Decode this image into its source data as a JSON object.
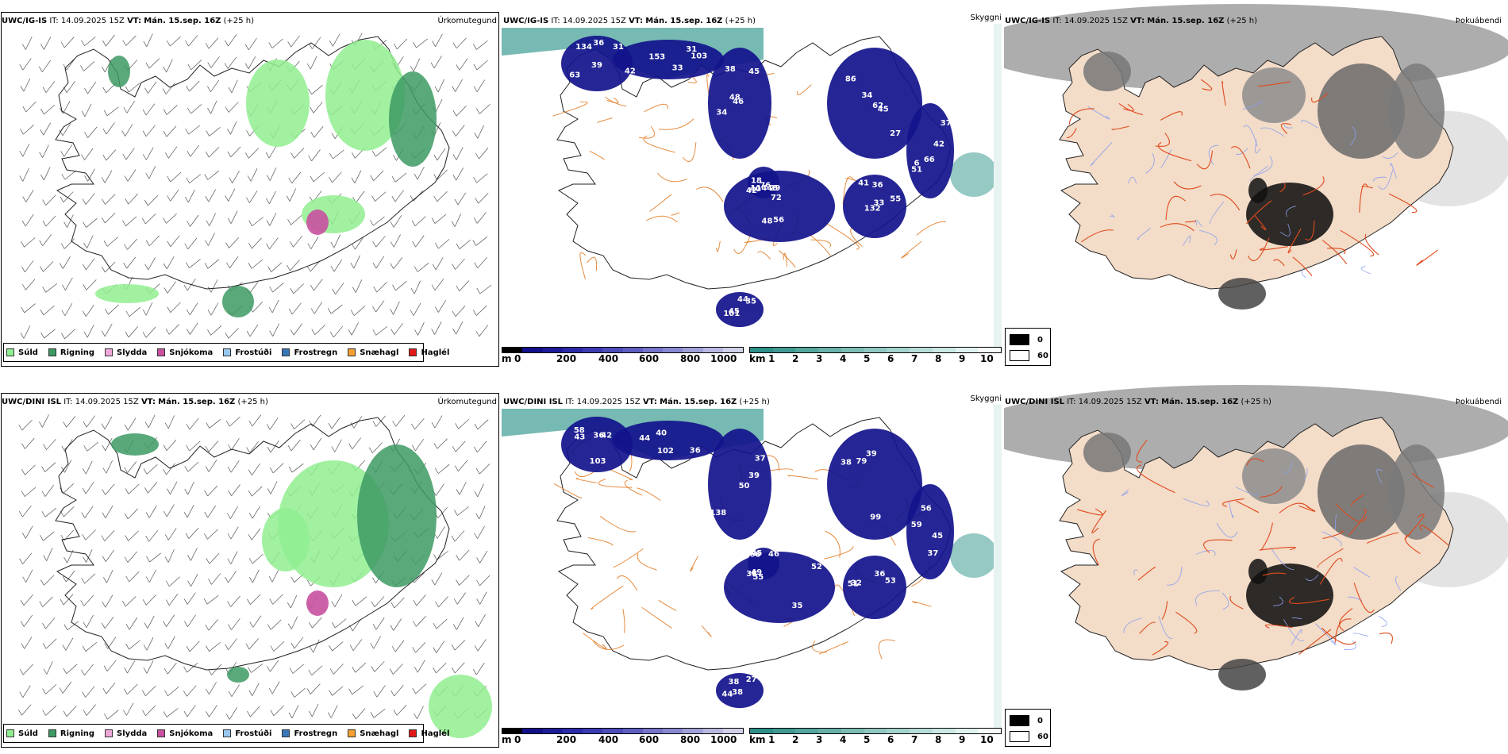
{
  "colors": {
    "precip_legend": [
      "#90ee90",
      "#3d9a63",
      "#f0a8d8",
      "#c8509e",
      "#98c8f0",
      "#3878b8",
      "#f5a030",
      "#e01818"
    ],
    "depth_bar": [
      "#000000",
      "#101088",
      "#1c1c98",
      "#2a2aa8",
      "#3a3ab0",
      "#4c4cb8",
      "#5e5ec0",
      "#7474c8",
      "#8888d0",
      "#a0a0d8",
      "#b8b8e0",
      "#d0d0e8"
    ],
    "height_bar": [
      "#2e8f88",
      "#419a92",
      "#54a59d",
      "#68b0a8",
      "#7cbcb4",
      "#90c7c0",
      "#a4d2cc",
      "#b8ddd8",
      "#cce8e4",
      "#e0f2f0",
      "#f4fbfa"
    ],
    "cloud_legend": [
      "#000000",
      "#ffffff"
    ]
  },
  "precip_legend": [
    "Súld",
    "Rigning",
    "Slydda",
    "Snjókoma",
    "Frostúði",
    "Frostregn",
    "Snæhagl",
    "Haglél"
  ],
  "depth_bar": {
    "unit": "m",
    "ticks": [
      "0",
      "200",
      "400",
      "600",
      "800",
      "1000"
    ]
  },
  "height_bar": {
    "unit": "km",
    "ticks": [
      "1",
      "2",
      "3",
      "4",
      "5",
      "6",
      "7",
      "8",
      "9",
      "10"
    ]
  },
  "cloud_legend": [
    "0",
    "60"
  ],
  "rows": [
    {
      "panel1": {
        "model": "UWC/IG-IS",
        "it": "IT: 14.09.2025 15Z",
        "vt_label": "VT:",
        "vt": "Mán. 15.sep. 16Z",
        "lead": "(+25 h)",
        "right": "Úrkomutegund"
      },
      "panel2": {
        "model": "UWC/IG-IS",
        "it": "IT: 14.09.2025 15Z",
        "vt_label": "VT:",
        "vt": "Mán. 15.sep. 16Z",
        "lead": "(+25 h)",
        "right": "Skyggni"
      },
      "panel3": {
        "model": "UWC/IG-IS",
        "it": "IT: 14.09.2025 15Z",
        "vt_label": "VT:",
        "vt": "Mán. 15.sep. 16Z",
        "lead": "(+25 h)",
        "right": "Þokuábendi"
      },
      "labels": [
        "134",
        "103",
        "48",
        "27",
        "6",
        "42",
        "33",
        "114",
        "45",
        "31",
        "31",
        "38",
        "86",
        "37",
        "48",
        "36",
        "40",
        "35",
        "36",
        "33",
        "34",
        "34",
        "42",
        "72",
        "132",
        "48",
        "101",
        "63",
        "153",
        "45",
        "62",
        "66",
        "56",
        "41",
        "76",
        "44",
        "39",
        "42",
        "46",
        "45",
        "51",
        "29",
        "55",
        "18"
      ]
    },
    {
      "panel1": {
        "model": "UWC/DINI ISL",
        "it": "IT: 14.09.2025 15Z",
        "vt_label": "VT:",
        "vt": "Mán. 15.sep. 16Z",
        "lead": "(+25 h)",
        "right": "Úrkomutegund"
      },
      "panel2": {
        "model": "UWC/DINI ISL",
        "it": "IT: 14.09.2025 15Z",
        "vt_label": "VT:",
        "vt": "Mán. 15.sep. 16Z",
        "lead": "(+25 h)",
        "right": "Skyggni"
      },
      "panel3": {
        "model": "UWC/DINI ISL",
        "it": "IT: 14.09.2025 15Z",
        "vt_label": "VT:",
        "vt": "Mán. 15.sep. 16Z",
        "lead": "(+25 h)",
        "right": "Þokuábendi"
      },
      "labels": [
        "103",
        "102",
        "138",
        "99",
        "45",
        "55",
        "36",
        "49",
        "38",
        "58",
        "44",
        "37",
        "39",
        "59",
        "38",
        "53",
        "45",
        "38",
        "42",
        "36",
        "39",
        "79",
        "56",
        "52",
        "51",
        "68",
        "44",
        "43",
        "40",
        "50",
        "38",
        "37",
        "35",
        "32",
        "46",
        "27",
        "36"
      ]
    }
  ]
}
